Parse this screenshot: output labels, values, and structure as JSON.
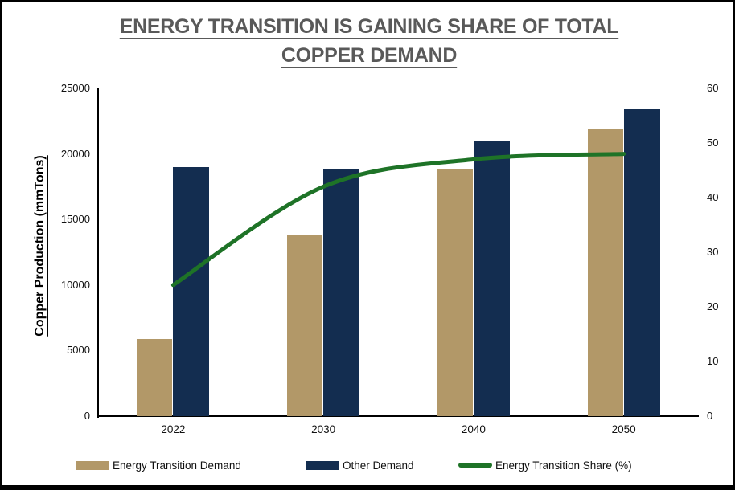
{
  "title": "ENERGY TRANSITION IS GAINING SHARE OF TOTAL COPPER DEMAND",
  "colors": {
    "title_text": "#595959",
    "axis_line": "#000000",
    "frame_border": "#000000",
    "energy_transition_bar": "#B29868",
    "other_demand_bar": "#132D50",
    "share_line": "#1E7327"
  },
  "chart_data": {
    "type": "bar",
    "subtype": "grouped bars with secondary-axis smoothed line",
    "title": "ENERGY TRANSITION IS GAINING SHARE OF TOTAL COPPER DEMAND",
    "categories": [
      "2022",
      "2030",
      "2040",
      "2050"
    ],
    "series": [
      {
        "name": "Energy Transition Demand",
        "type": "bar",
        "axis": "left",
        "color": "#B29868",
        "values": [
          5900,
          13800,
          18900,
          21900
        ]
      },
      {
        "name": "Other Demand",
        "type": "bar",
        "axis": "left",
        "color": "#132D50",
        "values": [
          19000,
          18900,
          21000,
          23400
        ]
      },
      {
        "name": "Energy Transition Share (%)",
        "type": "line",
        "axis": "right",
        "color": "#1E7327",
        "values": [
          24,
          42,
          47,
          48
        ]
      }
    ],
    "ylabel_left": "Copper Production (mmTons)",
    "left_axis": {
      "min": 0,
      "max": 25000,
      "step": 5000,
      "ticks": [
        "0",
        "5000",
        "10000",
        "15000",
        "20000",
        "25000"
      ]
    },
    "right_axis": {
      "min": 0,
      "max": 60,
      "step": 10,
      "ticks": [
        "0",
        "10",
        "20",
        "30",
        "40",
        "50",
        "60"
      ]
    },
    "grid": false,
    "legend_position": "bottom"
  }
}
